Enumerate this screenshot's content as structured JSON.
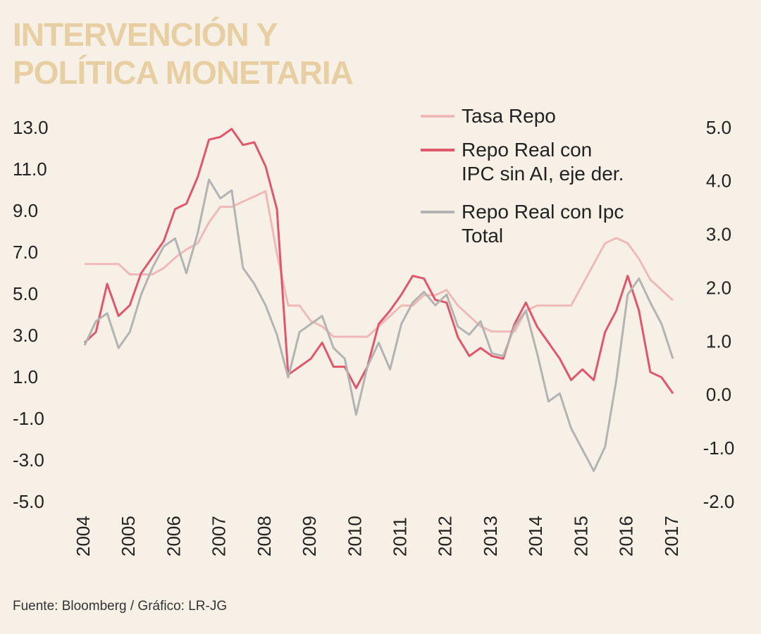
{
  "chart_data": {
    "type": "line",
    "title": "INTERVENCIÓN Y POLÍTICA MONETARIA",
    "source": "Fuente:  Bloomberg / Gráfico: LR-JG",
    "x": [
      2004,
      2004.25,
      2004.5,
      2004.75,
      2005,
      2005.25,
      2005.5,
      2005.75,
      2006,
      2006.25,
      2006.5,
      2006.75,
      2007,
      2007.25,
      2007.5,
      2007.75,
      2008,
      2008.25,
      2008.5,
      2008.75,
      2009,
      2009.25,
      2009.5,
      2009.75,
      2010,
      2010.25,
      2010.5,
      2010.75,
      2011,
      2011.25,
      2011.5,
      2011.75,
      2012,
      2012.25,
      2012.5,
      2012.75,
      2013,
      2013.25,
      2013.5,
      2013.75,
      2014,
      2014.25,
      2014.5,
      2014.75,
      2015,
      2015.25,
      2015.5,
      2015.75,
      2016,
      2016.25,
      2016.5,
      2016.75,
      2017
    ],
    "xlim": [
      2004,
      2017
    ],
    "xticks": [
      2004,
      2005,
      2006,
      2007,
      2008,
      2009,
      2010,
      2011,
      2012,
      2013,
      2014,
      2015,
      2016,
      2017
    ],
    "ylim": [
      -5,
      13
    ],
    "yticks": [
      {
        "value": 13,
        "label": "13.0"
      },
      {
        "value": 11,
        "label": "11.0"
      },
      {
        "value": 9,
        "label": "9.0"
      },
      {
        "value": 7,
        "label": "7.0"
      },
      {
        "value": 5,
        "label": "5.0"
      },
      {
        "value": 3,
        "label": "3.0"
      },
      {
        "value": 1,
        "label": "1.0"
      },
      {
        "value": -1,
        "label": "-1.0"
      },
      {
        "value": -3,
        "label": "-3.0"
      },
      {
        "value": -5,
        "label": "-5.0"
      }
    ],
    "y2lim": [
      -2,
      5
    ],
    "y2ticks": [
      {
        "value": 5,
        "label": "5.0"
      },
      {
        "value": 4,
        "label": "4.0"
      },
      {
        "value": 3,
        "label": "3.0"
      },
      {
        "value": 2,
        "label": "2.0"
      },
      {
        "value": 1,
        "label": "1.0"
      },
      {
        "value": 0,
        "label": "0.0"
      },
      {
        "value": -1,
        "label": "-1.0"
      },
      {
        "value": -2,
        "label": "-2.0"
      }
    ],
    "series": [
      {
        "name": "Tasa Repo",
        "color": "#f0b9b9",
        "values": [
          6.5,
          6.5,
          6.5,
          6.5,
          6.0,
          6.0,
          6.0,
          6.3,
          6.8,
          7.2,
          7.5,
          8.5,
          9.25,
          9.25,
          9.5,
          9.75,
          10.0,
          7.0,
          4.5,
          4.5,
          3.75,
          3.5,
          3.0,
          3.0,
          3.0,
          3.0,
          3.5,
          4.0,
          4.5,
          4.5,
          5.0,
          5.0,
          5.25,
          4.5,
          4.0,
          3.5,
          3.25,
          3.25,
          3.25,
          4.25,
          4.5,
          4.5,
          4.5,
          4.5,
          5.5,
          6.5,
          7.5,
          7.75,
          7.5,
          6.75,
          5.75,
          5.25,
          4.75
        ]
      },
      {
        "name": "Repo Real con IPC sin AI, eje der.",
        "color": "#e0566b",
        "axis": "y2",
        "values": [
          1.0,
          1.2,
          2.1,
          1.5,
          1.7,
          2.3,
          2.6,
          2.9,
          3.5,
          3.6,
          4.1,
          4.8,
          4.85,
          5.0,
          4.7,
          4.75,
          4.3,
          3.5,
          0.4,
          0.55,
          0.7,
          1.0,
          0.55,
          0.55,
          0.15,
          0.55,
          1.35,
          1.6,
          1.9,
          2.25,
          2.2,
          1.8,
          1.75,
          1.1,
          0.75,
          0.9,
          0.75,
          0.7,
          1.35,
          1.75,
          1.3,
          1.0,
          0.7,
          0.3,
          0.5,
          0.3,
          1.2,
          1.6,
          2.25,
          1.6,
          0.45,
          0.35,
          0.05
        ]
      },
      {
        "name": "Repo Real con Ipc Total",
        "color": "#b3b3b3",
        "axis": "y2",
        "values": [
          0.95,
          1.4,
          1.55,
          0.9,
          1.2,
          1.9,
          2.4,
          2.8,
          2.95,
          2.3,
          3.05,
          4.05,
          3.7,
          3.85,
          2.4,
          2.1,
          1.7,
          1.15,
          0.35,
          1.2,
          1.35,
          1.5,
          0.9,
          0.7,
          -0.35,
          0.55,
          1.0,
          0.5,
          1.35,
          1.75,
          1.95,
          1.7,
          1.9,
          1.3,
          1.15,
          1.4,
          0.8,
          0.75,
          1.3,
          1.6,
          0.8,
          -0.1,
          0.05,
          -0.6,
          -1.0,
          -1.4,
          -0.95,
          0.3,
          1.9,
          2.2,
          1.75,
          1.35,
          0.7
        ]
      }
    ]
  }
}
